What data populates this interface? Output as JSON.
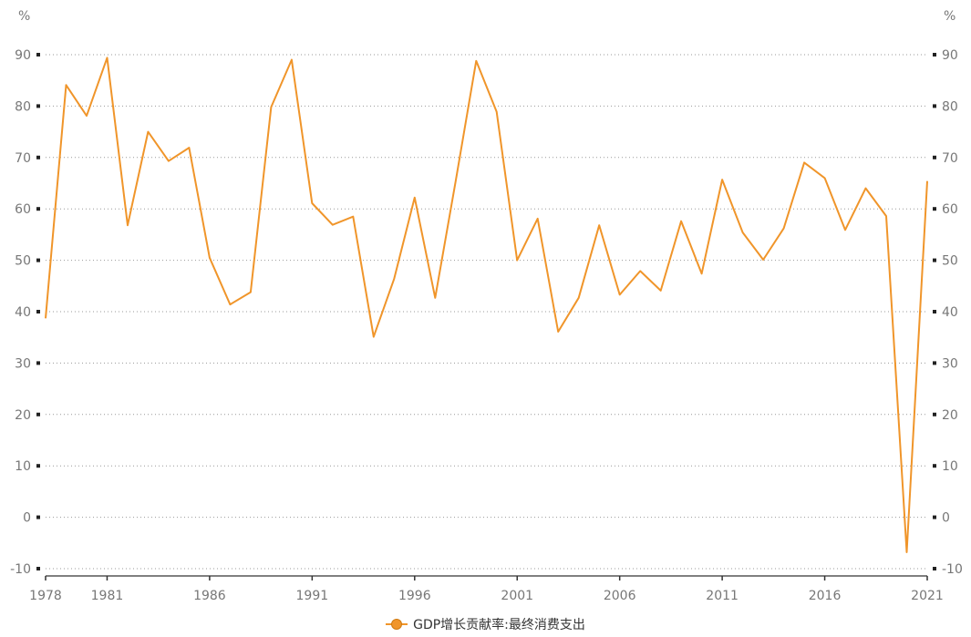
{
  "chart_data": {
    "type": "line",
    "title": "",
    "y_unit_left": "%",
    "y_unit_right": "%",
    "ylim": [
      -10,
      90
    ],
    "yticks": [
      -10,
      0,
      10,
      20,
      30,
      40,
      50,
      60,
      70,
      80,
      90
    ],
    "xlim": [
      1978,
      2021
    ],
    "xticks": [
      1978,
      1981,
      1986,
      1991,
      1996,
      2001,
      2006,
      2011,
      2016,
      2021
    ],
    "grid": true,
    "legend_position": "bottom-center",
    "series": [
      {
        "name": "GDP增长贡献率:最终消费支出",
        "color": "#f0952a",
        "x": [
          1978,
          1979,
          1980,
          1981,
          1982,
          1983,
          1984,
          1985,
          1986,
          1987,
          1988,
          1989,
          1990,
          1991,
          1992,
          1993,
          1994,
          1995,
          1996,
          1997,
          1998,
          1999,
          2000,
          2001,
          2002,
          2003,
          2004,
          2005,
          2006,
          2007,
          2008,
          2009,
          2010,
          2011,
          2012,
          2013,
          2014,
          2015,
          2016,
          2017,
          2018,
          2019,
          2020,
          2021
        ],
        "values": [
          38.7,
          84.1,
          78.1,
          89.4,
          56.8,
          75.0,
          69.3,
          71.9,
          50.5,
          41.4,
          43.8,
          79.8,
          89.0,
          61.1,
          56.9,
          58.5,
          35.1,
          46.4,
          62.2,
          42.7,
          65.4,
          88.8,
          78.9,
          50.0,
          58.1,
          36.1,
          42.7,
          56.8,
          43.3,
          47.9,
          44.1,
          57.6,
          47.4,
          65.7,
          55.4,
          50.1,
          56.2,
          69.0,
          66.0,
          55.9,
          64.0,
          58.6,
          -6.8,
          65.4
        ]
      }
    ]
  }
}
